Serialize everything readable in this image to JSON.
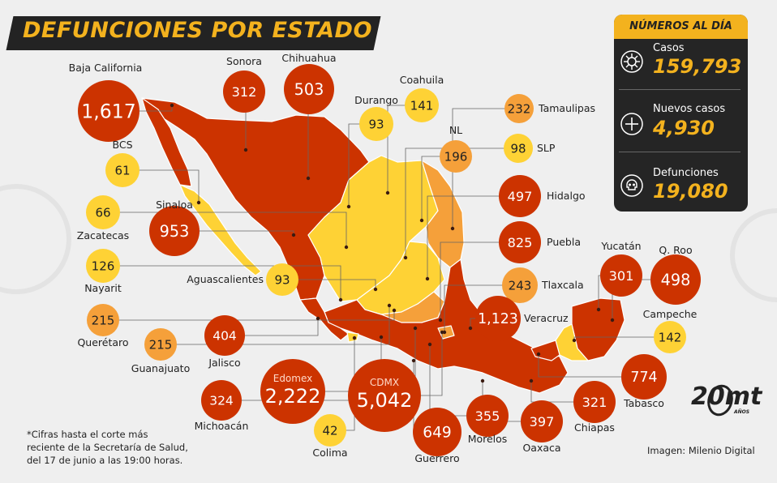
{
  "title": "DEFUNCIONES POR ESTADO",
  "panel": {
    "header": "NÚMEROS AL DÍA",
    "stats": [
      {
        "label": "Casos",
        "value": "159,793",
        "icon": "virus-icon"
      },
      {
        "label": "Nuevos casos",
        "value": "4,930",
        "icon": "plus-icon"
      },
      {
        "label": "Defunciones",
        "value": "19,080",
        "icon": "skull-icon"
      }
    ]
  },
  "states": [
    {
      "name": "Baja California",
      "value": "1,617",
      "tier": "high"
    },
    {
      "name": "Sonora",
      "value": "312",
      "tier": "high"
    },
    {
      "name": "Chihuahua",
      "value": "503",
      "tier": "high"
    },
    {
      "name": "Durango",
      "value": "93",
      "tier": "low"
    },
    {
      "name": "Coahuila",
      "value": "141",
      "tier": "low"
    },
    {
      "name": "Tamaulipas",
      "value": "232",
      "tier": "mid"
    },
    {
      "name": "NL",
      "value": "196",
      "tier": "mid"
    },
    {
      "name": "SLP",
      "value": "98",
      "tier": "low"
    },
    {
      "name": "BCS",
      "value": "61",
      "tier": "low"
    },
    {
      "name": "Hidalgo",
      "value": "497",
      "tier": "high"
    },
    {
      "name": "Sinaloa",
      "value": "953",
      "tier": "high"
    },
    {
      "name": "Zacatecas",
      "value": "66",
      "tier": "low"
    },
    {
      "name": "Puebla",
      "value": "825",
      "tier": "high"
    },
    {
      "name": "Nayarit",
      "value": "126",
      "tier": "low"
    },
    {
      "name": "Aguascalientes",
      "value": "93",
      "tier": "low"
    },
    {
      "name": "Yucatán",
      "value": "301",
      "tier": "high"
    },
    {
      "name": "Q. Roo",
      "value": "498",
      "tier": "high"
    },
    {
      "name": "Tlaxcala",
      "value": "243",
      "tier": "mid"
    },
    {
      "name": "Querétaro",
      "value": "215",
      "tier": "mid"
    },
    {
      "name": "Veracruz",
      "value": "1,123",
      "tier": "high"
    },
    {
      "name": "Campeche",
      "value": "142",
      "tier": "low"
    },
    {
      "name": "Guanajuato",
      "value": "215",
      "tier": "mid"
    },
    {
      "name": "Jalisco",
      "value": "404",
      "tier": "high"
    },
    {
      "name": "Edomex",
      "value": "2,222",
      "tier": "high"
    },
    {
      "name": "CDMX",
      "value": "5,042",
      "tier": "high"
    },
    {
      "name": "Tabasco",
      "value": "774",
      "tier": "high"
    },
    {
      "name": "Michoacán",
      "value": "324",
      "tier": "high"
    },
    {
      "name": "Colima",
      "value": "42",
      "tier": "low"
    },
    {
      "name": "Guerrero",
      "value": "649",
      "tier": "high"
    },
    {
      "name": "Morelos",
      "value": "355",
      "tier": "high"
    },
    {
      "name": "Oaxaca",
      "value": "397",
      "tier": "high"
    },
    {
      "name": "Chiapas",
      "value": "321",
      "tier": "high"
    }
  ],
  "colors": {
    "high": "#cc3300",
    "mid": "#f5a03a",
    "low": "#fed235",
    "panel_bg": "#252525",
    "accent": "#f3b21e",
    "map_border": "#ffffff"
  },
  "footnote": [
    "*Cifras hasta el corte más",
    "reciente de la Secretaría de Salud,",
    "del 17 de junio a las 19:00 horas."
  ],
  "credit": "Imagen: Milenio Digital",
  "logo": {
    "main": "20mt",
    "sub": "AÑOS"
  }
}
